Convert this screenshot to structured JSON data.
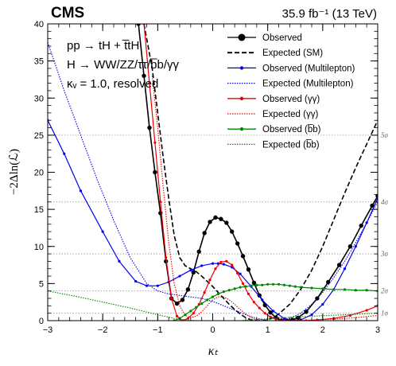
{
  "chart_data": {
    "type": "line",
    "experiment": "CMS",
    "luminosity": "35.9 fb⁻¹ (13 TeV)",
    "annotations": [
      "pp → tH + t̅tH",
      "H → WW/ZZ/ττ/b̅b/γγ",
      "κᵥ = 1.0, resolved"
    ],
    "xlabel": "κₜ",
    "ylabel": "−2Δln(ℒ)",
    "xlim": [
      -3,
      3
    ],
    "ylim": [
      0,
      40
    ],
    "xticks": [
      "−3",
      "−2",
      "−1",
      "0",
      "1",
      "2",
      "3"
    ],
    "yticks": [
      "0",
      "5",
      "10",
      "15",
      "20",
      "25",
      "30",
      "35",
      "40"
    ],
    "sigma_lines": [
      {
        "y": 1,
        "label": "1σ"
      },
      {
        "y": 4,
        "label": "2σ"
      },
      {
        "y": 9,
        "label": "3σ"
      },
      {
        "y": 16,
        "label": "4σ"
      },
      {
        "y": 25,
        "label": "5σ"
      }
    ],
    "legend_position": "top-right",
    "series": [
      {
        "name": "Observed",
        "color": "#000000",
        "dash": "solid",
        "marker": "large-dot",
        "x": [
          -1.35,
          -1.25,
          -1.15,
          -1.05,
          -0.95,
          -0.85,
          -0.75,
          -0.65,
          -0.55,
          -0.45,
          -0.35,
          -0.25,
          -0.15,
          -0.05,
          0.05,
          0.15,
          0.25,
          0.35,
          0.45,
          0.55,
          0.65,
          0.75,
          0.85,
          0.95,
          1.05,
          1.15,
          1.25,
          1.35,
          1.45,
          1.55,
          1.7,
          1.9,
          2.1,
          2.3,
          2.5,
          2.7,
          2.9,
          3.0
        ],
        "y": [
          40.0,
          33.0,
          26.0,
          20.0,
          14.5,
          8.0,
          3.0,
          2.3,
          2.8,
          4.2,
          6.5,
          9.3,
          11.8,
          13.3,
          13.9,
          13.7,
          13.2,
          12.0,
          10.4,
          8.7,
          6.9,
          5.1,
          3.4,
          2.1,
          1.1,
          0.4,
          0.0,
          0.0,
          0.1,
          0.4,
          1.2,
          3.0,
          5.2,
          7.5,
          10.0,
          12.8,
          15.5,
          16.8
        ]
      },
      {
        "name": "Expected (SM)",
        "color": "#000000",
        "dash": "dashed",
        "marker": "none",
        "x": [
          -1.25,
          -1.1,
          -1.0,
          -0.9,
          -0.8,
          -0.7,
          -0.6,
          -0.5,
          -0.4,
          -0.3,
          -0.2,
          -0.1,
          0.0,
          0.1,
          0.2,
          0.3,
          0.4,
          0.5,
          0.6,
          0.7,
          0.8,
          0.9,
          1.0,
          1.1,
          1.2,
          1.4,
          1.6,
          1.8,
          2.0,
          2.2,
          2.4,
          2.6,
          2.8,
          3.0
        ],
        "y": [
          40.0,
          34.0,
          28.0,
          22.0,
          16.5,
          11.5,
          8.5,
          7.4,
          7.0,
          6.6,
          6.0,
          5.3,
          4.6,
          3.8,
          3.0,
          2.2,
          1.5,
          0.9,
          0.4,
          0.1,
          0.0,
          0.0,
          0.1,
          0.4,
          0.9,
          2.2,
          4.2,
          6.8,
          10.0,
          13.6,
          17.2,
          20.6,
          23.8,
          27.0
        ]
      },
      {
        "name": "Observed (Multilepton)",
        "color": "#0000ee",
        "dash": "solid",
        "marker": "small-dot",
        "x": [
          -3.0,
          -2.7,
          -2.4,
          -2.0,
          -1.7,
          -1.4,
          -1.2,
          -1.0,
          -0.8,
          -0.6,
          -0.4,
          -0.2,
          0.0,
          0.1,
          0.2,
          0.35,
          0.5,
          0.7,
          0.9,
          1.1,
          1.3,
          1.45,
          1.6,
          1.8,
          2.0,
          2.2,
          2.4,
          2.6,
          2.8,
          3.0
        ],
        "y": [
          27.0,
          22.5,
          17.5,
          12.0,
          8.0,
          5.3,
          4.7,
          4.7,
          5.2,
          6.0,
          6.8,
          7.4,
          7.7,
          7.7,
          7.6,
          7.2,
          6.3,
          4.6,
          2.8,
          1.3,
          0.3,
          0.0,
          0.1,
          0.8,
          2.2,
          4.2,
          7.0,
          10.0,
          13.2,
          16.5
        ]
      },
      {
        "name": "Expected (Multilepton)",
        "color": "#0000ee",
        "dash": "dotted",
        "marker": "none",
        "x": [
          -3.0,
          -2.7,
          -2.4,
          -2.1,
          -1.8,
          -1.5,
          -1.2,
          -1.0,
          -0.8,
          -0.6,
          -0.4,
          -0.2,
          0.0,
          0.2,
          0.4,
          0.6,
          0.8,
          1.0,
          1.2,
          1.4,
          1.6,
          1.8,
          2.0,
          2.2,
          2.4,
          2.6,
          2.8,
          3.0
        ],
        "y": [
          37.5,
          31.0,
          25.0,
          19.0,
          13.5,
          8.5,
          5.0,
          4.0,
          3.6,
          3.4,
          3.2,
          3.0,
          2.6,
          2.0,
          1.4,
          0.8,
          0.3,
          0.0,
          0.0,
          0.3,
          1.0,
          2.2,
          3.8,
          5.8,
          8.0,
          10.5,
          13.2,
          16.0
        ]
      },
      {
        "name": "Observed (γγ)",
        "color": "#ee0000",
        "dash": "solid",
        "marker": "small-dot",
        "x": [
          -1.25,
          -1.15,
          -1.05,
          -0.95,
          -0.85,
          -0.75,
          -0.65,
          -0.55,
          -0.45,
          -0.35,
          -0.25,
          -0.15,
          -0.05,
          0.05,
          0.15,
          0.25,
          0.35,
          0.45,
          0.55,
          0.65,
          0.75,
          0.85,
          0.95,
          1.05,
          1.15,
          1.3,
          1.5,
          1.7,
          1.9,
          2.2,
          2.5,
          2.8,
          3.0
        ],
        "y": [
          40.0,
          32.0,
          24.0,
          16.0,
          8.5,
          3.0,
          0.6,
          0.0,
          0.3,
          1.0,
          2.2,
          3.8,
          5.5,
          7.0,
          7.9,
          8.0,
          7.5,
          6.4,
          5.0,
          3.6,
          2.5,
          1.7,
          1.0,
          0.5,
          0.2,
          0.0,
          0.0,
          0.0,
          0.1,
          0.3,
          0.7,
          1.4,
          2.0
        ]
      },
      {
        "name": "Expected (γγ)",
        "color": "#ee0000",
        "dash": "dotted",
        "marker": "none",
        "x": [
          -1.1,
          -1.0,
          -0.9,
          -0.8,
          -0.7,
          -0.6,
          -0.5,
          -0.4,
          -0.3,
          -0.2,
          -0.1,
          0.0,
          0.1,
          0.2,
          0.3,
          0.4,
          0.5,
          0.6,
          0.7,
          0.8,
          0.9,
          1.0,
          1.2,
          1.5,
          1.8,
          2.2,
          2.6,
          3.0
        ],
        "y": [
          33.0,
          26.0,
          18.0,
          10.5,
          5.0,
          2.0,
          0.7,
          0.4,
          0.6,
          1.2,
          2.0,
          2.8,
          3.2,
          3.2,
          2.8,
          2.2,
          1.5,
          0.9,
          0.4,
          0.1,
          0.0,
          0.0,
          0.0,
          0.0,
          0.1,
          0.2,
          0.4,
          0.7
        ]
      },
      {
        "name": "Observed (b̅b)",
        "color": "#008800",
        "dash": "solid",
        "marker": "small-dot",
        "x": [
          -0.7,
          -0.6,
          -0.5,
          -0.4,
          -0.3,
          -0.2,
          -0.1,
          0.0,
          0.1,
          0.2,
          0.3,
          0.4,
          0.5,
          0.6,
          0.7,
          0.8,
          0.9,
          1.0,
          1.1,
          1.2,
          1.3,
          1.4,
          1.5,
          1.6,
          1.8,
          2.0,
          2.2,
          2.4,
          2.6,
          2.8,
          3.0
        ],
        "y": [
          0.0,
          0.3,
          0.8,
          1.3,
          1.8,
          2.3,
          2.8,
          3.2,
          3.6,
          3.9,
          4.1,
          4.3,
          4.5,
          4.6,
          4.7,
          4.8,
          4.8,
          4.9,
          4.9,
          4.9,
          4.8,
          4.7,
          4.6,
          4.5,
          4.4,
          4.3,
          4.2,
          4.2,
          4.1,
          4.1,
          4.0
        ]
      },
      {
        "name": "Expected (b̅b)",
        "color": "#008800",
        "dash": "dotted",
        "marker": "none",
        "x": [
          -3.0,
          -2.5,
          -2.0,
          -1.5,
          -1.0,
          -0.7,
          -0.5,
          -0.3,
          -0.1,
          0.1,
          0.3,
          0.5,
          0.7,
          0.9,
          1.1,
          1.3,
          1.5,
          1.8,
          2.1,
          2.4,
          2.7,
          3.0
        ],
        "y": [
          4.0,
          3.3,
          2.5,
          1.7,
          0.8,
          0.3,
          0.1,
          0.0,
          0.0,
          0.0,
          0.0,
          0.0,
          0.1,
          0.2,
          0.3,
          0.4,
          0.5,
          0.6,
          0.7,
          0.8,
          0.9,
          1.0
        ]
      }
    ]
  }
}
